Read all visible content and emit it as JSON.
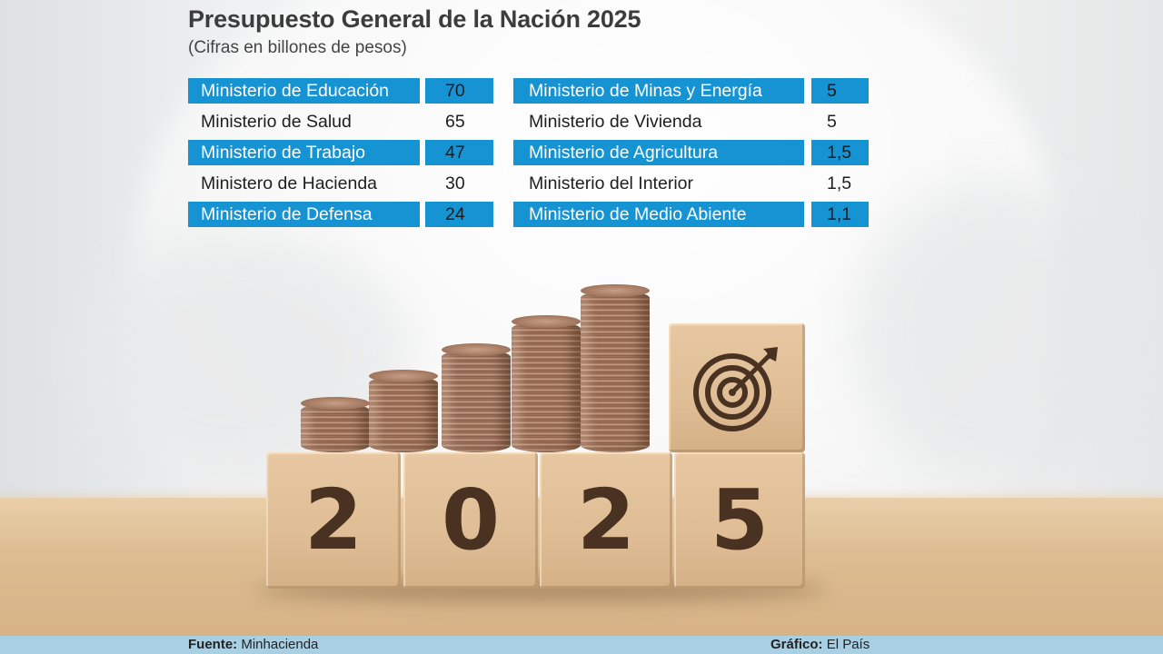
{
  "title": "Presupuesto General de la Nación 2025",
  "subtitle": "(Cifras en billones de pesos)",
  "chart_data": {
    "type": "table",
    "title": "Presupuesto General de la Nación 2025",
    "subtitle": "(Cifras en billones de pesos)",
    "columns": [
      {
        "rows": [
          {
            "name": "Ministerio de Educación",
            "value": "70",
            "highlight": true
          },
          {
            "name": "Ministerio de Salud",
            "value": "65",
            "highlight": false
          },
          {
            "name": "Ministerio de Trabajo",
            "value": "47",
            "highlight": true
          },
          {
            "name": "Ministero de Hacienda",
            "value": "30",
            "highlight": false
          },
          {
            "name": "Ministerio de Defensa",
            "value": "24",
            "highlight": true
          }
        ]
      },
      {
        "rows": [
          {
            "name": "Ministerio de Minas y Energía",
            "value": "5",
            "highlight": true
          },
          {
            "name": "Ministerio de Vivienda",
            "value": "5",
            "highlight": false
          },
          {
            "name": "Ministerio de Agricultura",
            "value": "1,5",
            "highlight": true
          },
          {
            "name": "Ministerio del Interior",
            "value": "1,5",
            "highlight": false
          },
          {
            "name": "Ministerio de Medio Abiente",
            "value": "1,1",
            "highlight": true
          }
        ]
      }
    ]
  },
  "image": {
    "block_digits": [
      "2",
      "0",
      "2",
      "5"
    ],
    "icons": [
      "coin-stack-icon",
      "target-icon"
    ]
  },
  "footer": {
    "source_label": "Fuente:",
    "source_value": "Minhacienda",
    "graphic_label": "Gráfico:",
    "graphic_value": "El País"
  },
  "colors": {
    "highlight": "#1593d3",
    "footer_bar": "#a9cfe3",
    "title": "#3c3c3c"
  }
}
